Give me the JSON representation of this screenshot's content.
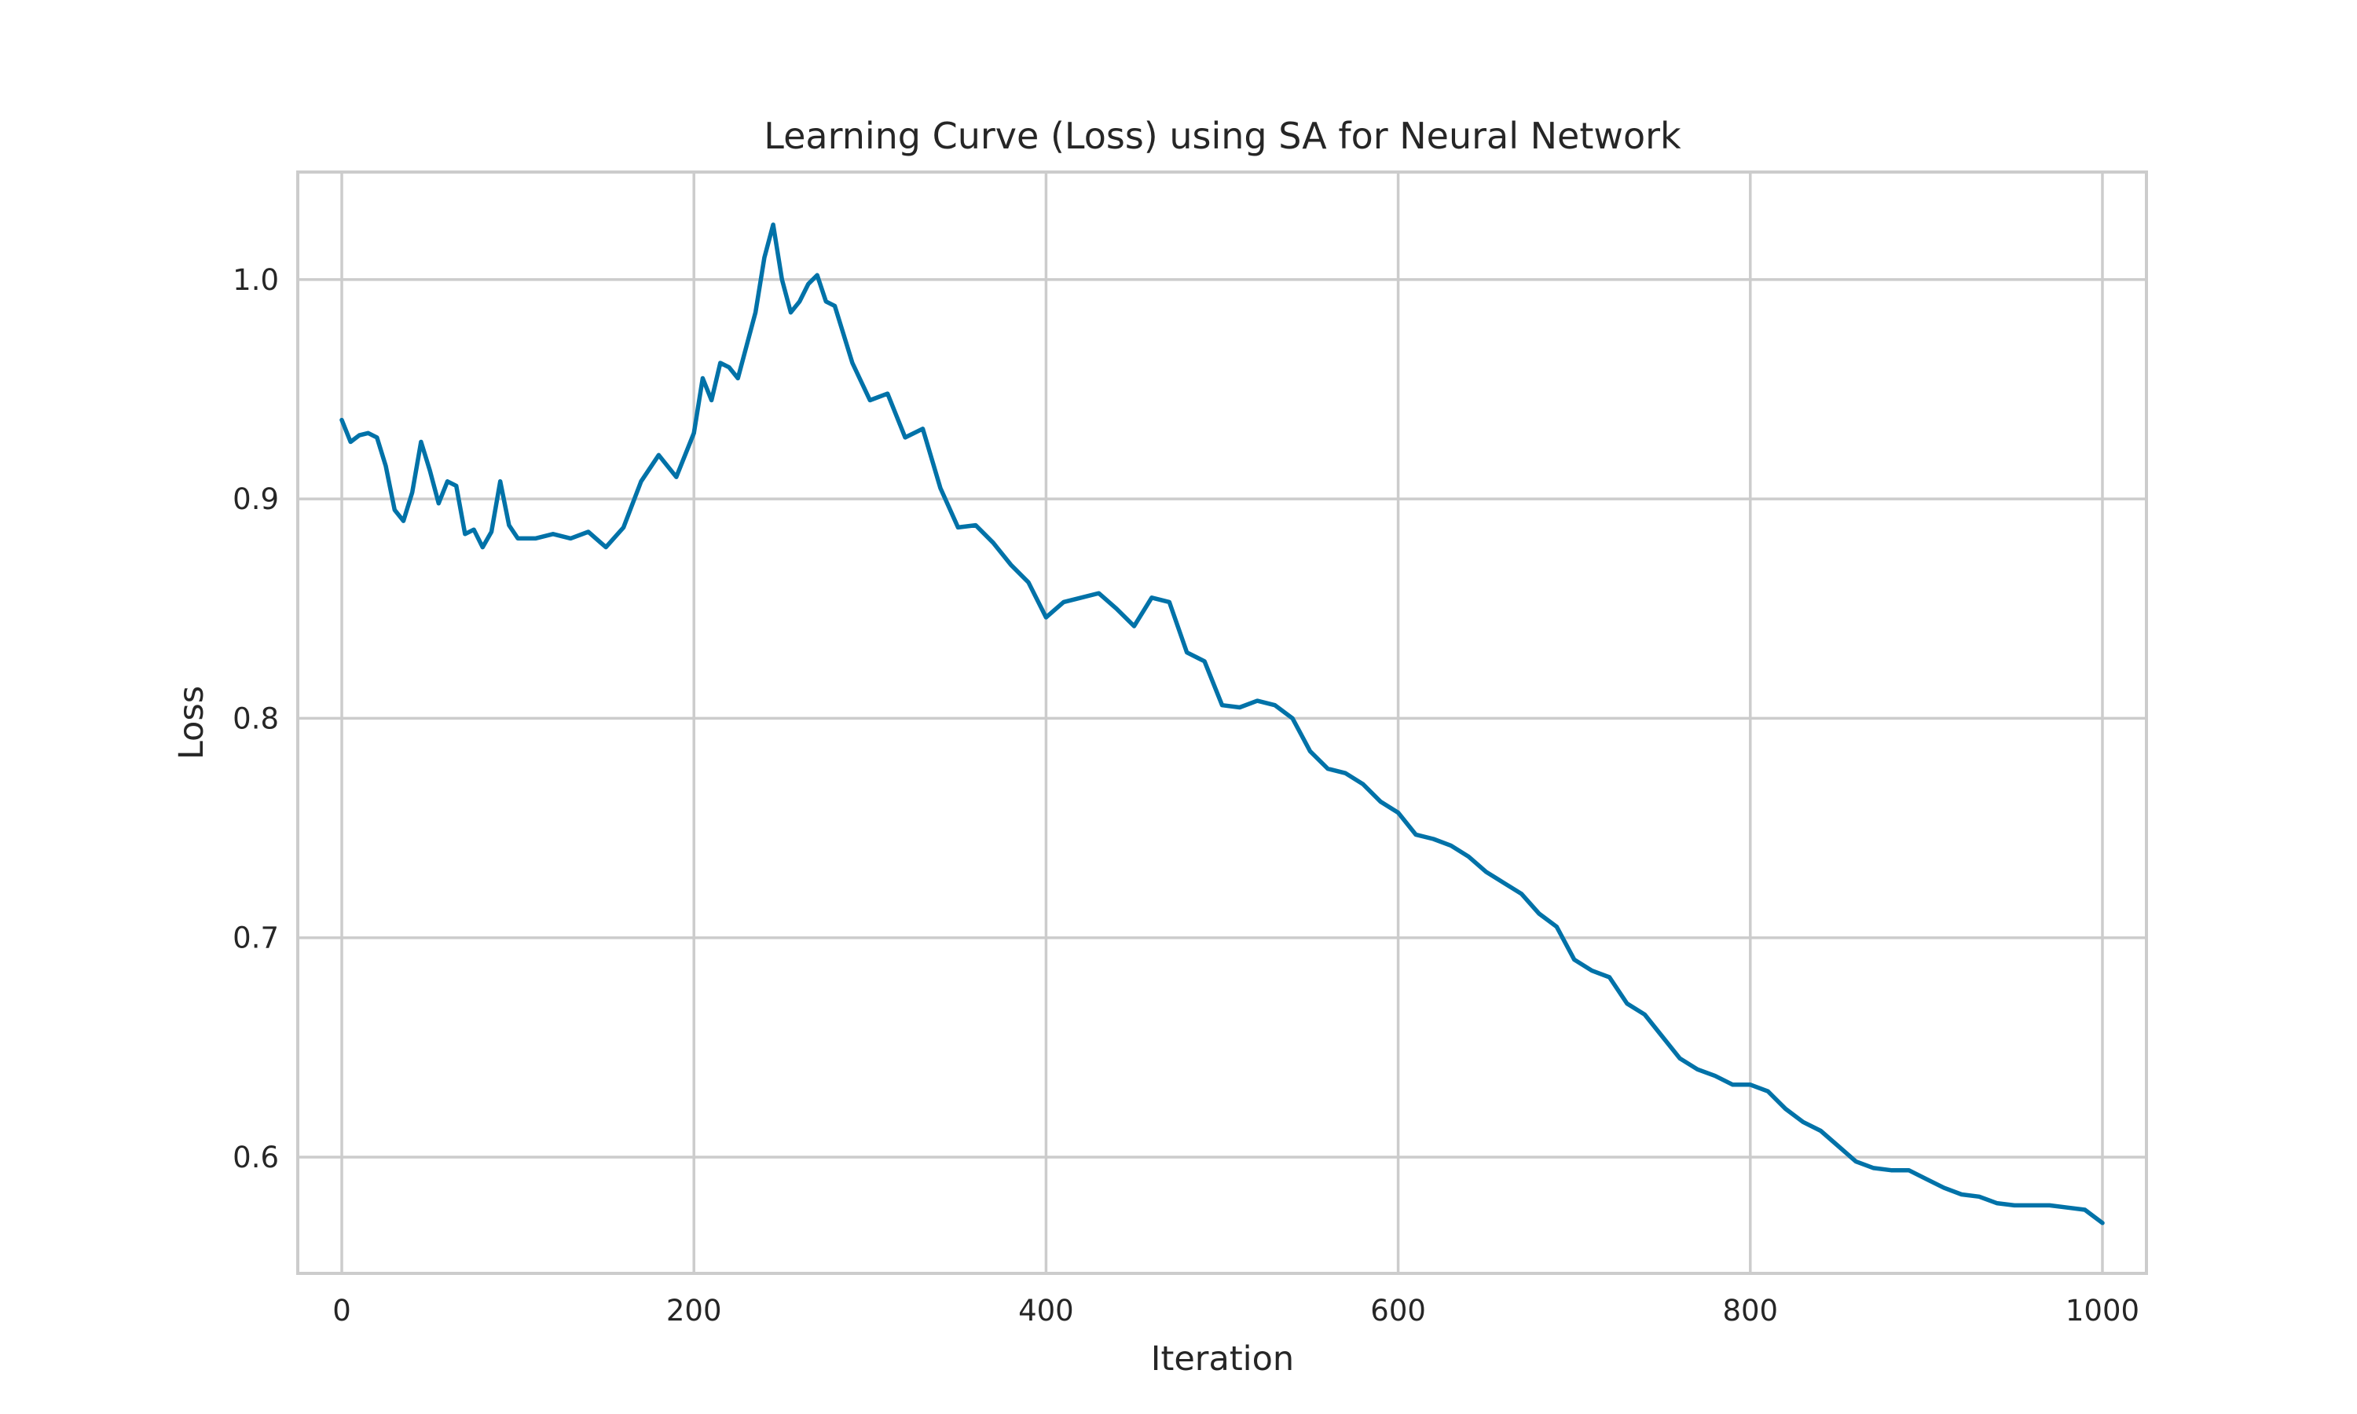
{
  "chart_data": {
    "type": "line",
    "title": "Learning Curve (Loss) using SA for Neural Network",
    "xlabel": "Iteration",
    "ylabel": "Loss",
    "xlim": [
      -25,
      1025
    ],
    "ylim": [
      0.547,
      1.049
    ],
    "grid": true,
    "colors": {
      "series": "#0072a8",
      "grid": "#cccccc",
      "text": "#262626"
    },
    "xticks": [
      0,
      200,
      400,
      600,
      800,
      1000
    ],
    "xtick_labels": [
      "0",
      "200",
      "400",
      "600",
      "800",
      "1000"
    ],
    "yticks": [
      0.6,
      0.7,
      0.8,
      0.9,
      1.0
    ],
    "ytick_labels": [
      "0.6",
      "0.7",
      "0.8",
      "0.9",
      "1.0"
    ],
    "series": [
      {
        "x": [
          0,
          5,
          10,
          15,
          20,
          25,
          30,
          35,
          40,
          45,
          50,
          55,
          60,
          65,
          70,
          75,
          80,
          85,
          90,
          95,
          100,
          110,
          120,
          130,
          140,
          150,
          160,
          170,
          180,
          190,
          200,
          205,
          210,
          215,
          220,
          225,
          230,
          235,
          240,
          245,
          250,
          255,
          260,
          265,
          270,
          275,
          280,
          285,
          290,
          300,
          310,
          320,
          330,
          340,
          350,
          360,
          370,
          380,
          390,
          400,
          410,
          420,
          430,
          440,
          450,
          460,
          470,
          480,
          490,
          500,
          510,
          520,
          530,
          540,
          550,
          560,
          570,
          580,
          590,
          600,
          610,
          620,
          630,
          640,
          650,
          660,
          670,
          680,
          690,
          700,
          710,
          720,
          730,
          740,
          750,
          760,
          770,
          780,
          790,
          800,
          810,
          820,
          830,
          840,
          850,
          860,
          870,
          880,
          890,
          900,
          910,
          920,
          930,
          940,
          950,
          960,
          970,
          980,
          990,
          1000
        ],
        "y": [
          0.936,
          0.926,
          0.929,
          0.93,
          0.928,
          0.915,
          0.895,
          0.89,
          0.903,
          0.926,
          0.913,
          0.898,
          0.908,
          0.906,
          0.884,
          0.886,
          0.878,
          0.885,
          0.908,
          0.888,
          0.882,
          0.882,
          0.884,
          0.882,
          0.885,
          0.878,
          0.887,
          0.908,
          0.92,
          0.91,
          0.93,
          0.955,
          0.945,
          0.962,
          0.96,
          0.955,
          0.97,
          0.985,
          1.01,
          1.025,
          1.0,
          0.985,
          0.99,
          0.998,
          1.002,
          0.99,
          0.988,
          0.975,
          0.962,
          0.945,
          0.948,
          0.928,
          0.932,
          0.905,
          0.887,
          0.888,
          0.88,
          0.87,
          0.862,
          0.846,
          0.853,
          0.855,
          0.857,
          0.85,
          0.842,
          0.855,
          0.853,
          0.83,
          0.826,
          0.806,
          0.805,
          0.808,
          0.806,
          0.8,
          0.785,
          0.777,
          0.775,
          0.77,
          0.762,
          0.757,
          0.747,
          0.745,
          0.742,
          0.737,
          0.73,
          0.725,
          0.72,
          0.711,
          0.705,
          0.69,
          0.685,
          0.682,
          0.67,
          0.665,
          0.655,
          0.645,
          0.64,
          0.637,
          0.633,
          0.633,
          0.63,
          0.622,
          0.616,
          0.612,
          0.605,
          0.598,
          0.595,
          0.594,
          0.594,
          0.59,
          0.586,
          0.583,
          0.582,
          0.579,
          0.578,
          0.578,
          0.578,
          0.577,
          0.576,
          0.57
        ]
      }
    ]
  }
}
